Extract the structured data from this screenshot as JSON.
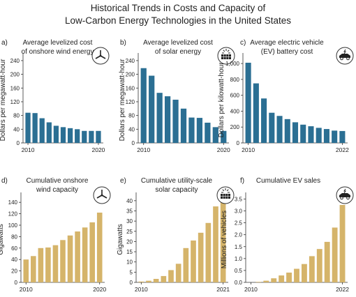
{
  "title_line1": "Historical Trends in Costs and Capacity of",
  "title_line2": "Low-Carbon Energy Technologies in the United States",
  "colors": {
    "cost_bar": "#2b6f93",
    "capacity_bar": "#d5b46a",
    "text": "#222222",
    "axis": "#333333"
  },
  "chart_data": [
    {
      "panel_label": "a)",
      "type": "bar",
      "icon": "wind-turbine-icon",
      "title_lines": [
        "Average levelized cost",
        "of onshore wind energy"
      ],
      "ylabel": "Dollars per megawatt-hour",
      "x": [
        2010,
        2011,
        2012,
        2013,
        2014,
        2015,
        2016,
        2017,
        2018,
        2019,
        2020
      ],
      "values": [
        88,
        87,
        72,
        60,
        50,
        46,
        43,
        40,
        35,
        35,
        35
      ],
      "ylim": [
        0,
        250
      ],
      "yticks": [
        0,
        40,
        80,
        120,
        160,
        200,
        240
      ],
      "xtick_labels": [
        "2010",
        "2020"
      ],
      "color_key": "cost_bar"
    },
    {
      "panel_label": "b)",
      "type": "bar",
      "icon": "solar-panel-icon",
      "title_lines": [
        "Average levelized cost",
        "of solar energy"
      ],
      "ylabel": "Dollars per megawatt-hour",
      "x": [
        2010,
        2011,
        2012,
        2013,
        2014,
        2015,
        2016,
        2017,
        2018,
        2019,
        2020
      ],
      "values": [
        218,
        196,
        146,
        136,
        126,
        100,
        74,
        73,
        59,
        46,
        35
      ],
      "ylim": [
        0,
        250
      ],
      "yticks": [
        0,
        40,
        80,
        120,
        160,
        200,
        240
      ],
      "xtick_labels": [
        "2010",
        "2020"
      ],
      "color_key": "cost_bar"
    },
    {
      "panel_label": "c)",
      "type": "bar",
      "icon": "electric-car-icon",
      "title_lines": [
        "Average electric vehicle",
        "(EV) battery cost"
      ],
      "ylabel": "Dollars per kilowatt-hour",
      "x": [
        2010,
        2011,
        2012,
        2013,
        2014,
        2015,
        2016,
        2017,
        2018,
        2019,
        2020,
        2021,
        2022
      ],
      "values": [
        1010,
        750,
        560,
        380,
        340,
        300,
        260,
        230,
        210,
        190,
        175,
        155,
        150
      ],
      "ylim": [
        0,
        1080
      ],
      "yticks": [
        0,
        200,
        400,
        600,
        800,
        1000
      ],
      "ytick_labels": [
        "0",
        "200",
        "400",
        "600",
        "800",
        "1,000"
      ],
      "xtick_labels": [
        "2010",
        "2022"
      ],
      "color_key": "cost_bar"
    },
    {
      "panel_label": "d)",
      "type": "bar",
      "icon": "wind-turbine-icon",
      "title_lines": [
        "Cumulative onshore",
        "wind capacity"
      ],
      "ylabel": "Gigawatts",
      "x": [
        2010,
        2011,
        2012,
        2013,
        2014,
        2015,
        2016,
        2017,
        2018,
        2019,
        2020
      ],
      "values": [
        40,
        46,
        60,
        61,
        65,
        74,
        82,
        89,
        96,
        105,
        122
      ],
      "ylim": [
        0,
        150
      ],
      "yticks": [
        0,
        20,
        40,
        60,
        80,
        100,
        120,
        140
      ],
      "xtick_labels": [
        "2010",
        "2020"
      ],
      "color_key": "capacity_bar"
    },
    {
      "panel_label": "e)",
      "type": "bar",
      "icon": "solar-panel-icon",
      "title_lines": [
        "Cumulative utility-scale",
        "solar capacity"
      ],
      "ylabel": "Gigawatts",
      "x": [
        2010,
        2011,
        2012,
        2013,
        2014,
        2015,
        2016,
        2017,
        2018,
        2019,
        2020,
        2021
      ],
      "values": [
        0.4,
        0.8,
        1.7,
        3.1,
        6.0,
        9.1,
        16.8,
        20.5,
        24.3,
        29.1,
        37.2,
        39.2
      ],
      "ylim": [
        0,
        42
      ],
      "yticks": [
        0,
        5,
        10,
        15,
        20,
        25,
        30,
        35,
        40
      ],
      "xtick_labels": [
        "2010",
        "2021"
      ],
      "color_key": "capacity_bar"
    },
    {
      "panel_label": "f)",
      "type": "bar",
      "icon": "electric-car-icon",
      "title_lines": [
        "Cumulative EV sales"
      ],
      "ylabel": "Millions of vehicles",
      "x": [
        2010,
        2011,
        2012,
        2013,
        2014,
        2015,
        2016,
        2017,
        2018,
        2019,
        2020,
        2021,
        2022
      ],
      "values": [
        0.0,
        0.02,
        0.07,
        0.17,
        0.29,
        0.41,
        0.57,
        0.77,
        1.1,
        1.4,
        1.7,
        2.3,
        3.25
      ],
      "ylim": [
        0,
        3.6
      ],
      "yticks": [
        0,
        0.5,
        1.0,
        1.5,
        2.0,
        2.5,
        3.0,
        3.5
      ],
      "ytick_labels": [
        "0.0",
        "0.5",
        "1.0",
        "1.5",
        "2.0",
        "2.5",
        "3.0",
        "3.5"
      ],
      "xtick_labels": [
        "2010",
        "2022"
      ],
      "color_key": "capacity_bar"
    }
  ]
}
